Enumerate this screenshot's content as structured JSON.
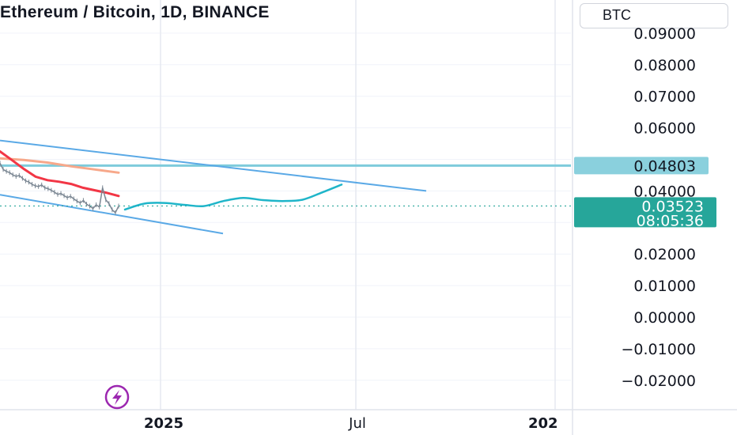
{
  "header": {
    "symbol_title": "Ethereum / Bitcoin, 1D, BINANCE",
    "currency": "BTC"
  },
  "price_axis": {
    "ticks": [
      "0.09000",
      "0.08000",
      "0.07000",
      "0.06000",
      "0.04000",
      "0.02000",
      "0.01000",
      "0.00000",
      "−0.01000",
      "−0.02000"
    ]
  },
  "time_axis": {
    "ticks": [
      {
        "label": "2025",
        "bold": true
      },
      {
        "label": "Jul",
        "bold": false
      },
      {
        "label": "202",
        "bold": true
      }
    ]
  },
  "price_labels": {
    "horizontal_level": "0.04803",
    "last_price": "0.03523",
    "countdown": "08:05:36"
  },
  "colors": {
    "level_line": "#7ecbdb",
    "level_label_bg": "#8ad0dd",
    "channel_lines": "#5aa9e6",
    "projection_line": "#1fb5c9",
    "last_price_bg": "#26a69a",
    "ma_fast": "#f23645",
    "ma_slow": "#f7a88a",
    "candles": "#7a8692",
    "grid": "#f0f3fa",
    "bolt_icon": "#9c27b0"
  },
  "chart_data": {
    "type": "line",
    "ylim": [
      -0.025,
      0.09
    ],
    "y_ticks": [
      0.09,
      0.08,
      0.07,
      0.06,
      0.04,
      0.02,
      0.01,
      0.0,
      -0.01,
      -0.02
    ],
    "horizontal_level": 0.04803,
    "last_price": 0.03523,
    "x_ticks": [
      "2025",
      "Jul",
      "202"
    ],
    "series": [
      {
        "values": [
          0.0488,
          0.0468,
          0.0462,
          0.0458,
          0.0451,
          0.0446,
          0.0449,
          0.044,
          0.0432,
          0.0428,
          0.0421,
          0.0416,
          0.0414,
          0.0419,
          0.041,
          0.0407,
          0.0402,
          0.0396,
          0.0389,
          0.0392,
          0.0385,
          0.0379,
          0.0383,
          0.0375,
          0.0368,
          0.0362,
          0.037,
          0.0358,
          0.0352,
          0.0344,
          0.0356,
          0.0349,
          0.041,
          0.0372,
          0.036,
          0.034,
          0.0331,
          0.0352
        ]
      },
      {
        "values": [
          0.0525,
          0.0498,
          0.047,
          0.0445,
          0.0434,
          0.0429,
          0.0422,
          0.041,
          0.0402,
          0.0394,
          0.0384
        ]
      },
      {
        "values": [
          0.0503,
          0.0498,
          0.049,
          0.0478,
          0.0468,
          0.0458
        ]
      }
    ],
    "channel": {
      "upper": [
        [
          0.056,
          0.04
        ]
      ],
      "lower": [
        [
          0.0388,
          0.0265
        ]
      ]
    },
    "projection": [
      0.0341,
      0.036,
      0.0362,
      0.0356,
      0.0352,
      0.0368,
      0.0378,
      0.0371,
      0.0368,
      0.0372,
      0.0395,
      0.042
    ]
  }
}
